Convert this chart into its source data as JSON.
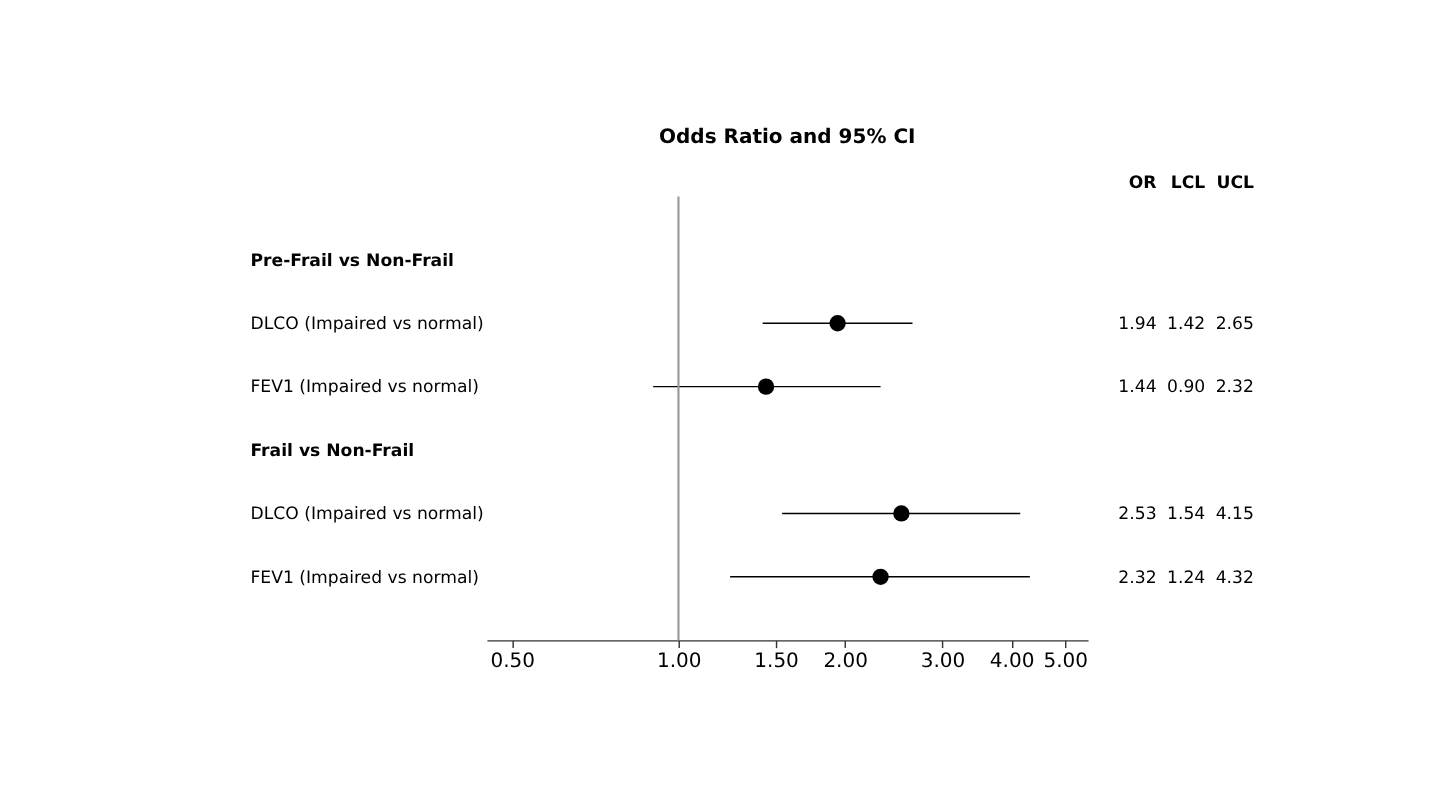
{
  "chart_data": {
    "type": "scatter",
    "orientation": "horizontal",
    "title": "Odds Ratio and 95% CI",
    "categories": [
      "Pre-Frail vs Non-Frail",
      "DLCO (Impaired vs normal)",
      "FEV1 (Impaired vs normal)",
      "Frail vs Non-Frail",
      "DLCO (Impaired vs normal)",
      "FEV1 (Impaired vs normal)"
    ],
    "values": [
      null,
      1.94,
      1.44,
      null,
      2.53,
      2.32
    ],
    "errors": [
      null,
      [
        1.42,
        2.65
      ],
      [
        0.9,
        2.32
      ],
      null,
      [
        1.54,
        4.15
      ],
      [
        1.24,
        4.32
      ]
    ],
    "color": "#000000",
    "marker": "circle",
    "log": "x",
    "xlim": [
      0.45,
      5.5
    ],
    "xticks": [
      {
        "value": 0.5,
        "label": "0.50"
      },
      {
        "value": 1,
        "label": "1.00"
      },
      {
        "value": 1.5,
        "label": "1.50"
      },
      {
        "value": 2,
        "label": "2.00"
      },
      {
        "value": 3,
        "label": "3.00"
      },
      {
        "value": 4,
        "label": "4.00"
      },
      {
        "value": 5,
        "label": "5.00"
      }
    ],
    "ref_lines": [
      {
        "axis": "x",
        "value": 1,
        "color": "#999999"
      }
    ],
    "data_labels": true,
    "annotations": [
      "OR",
      "LCL",
      "UCL",
      "1.42",
      "2.65",
      "0.90",
      "2.32",
      "1.54",
      "4.15",
      "1.24",
      "4.32"
    ],
    "grid": false,
    "legend": false
  }
}
